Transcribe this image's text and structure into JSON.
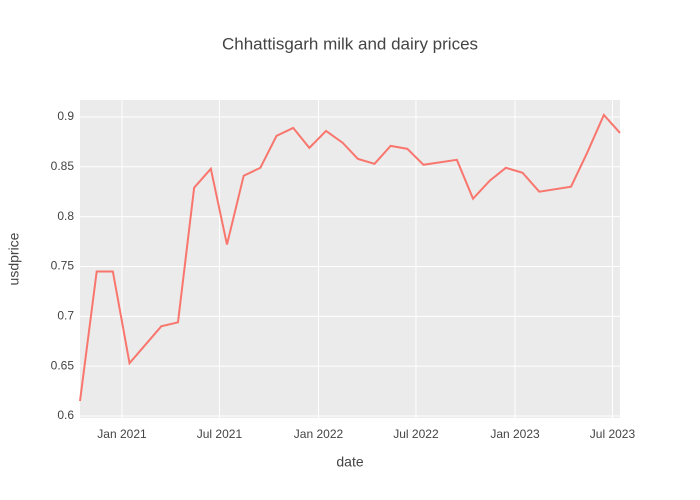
{
  "chart_data": {
    "type": "line",
    "title": "Chhattisgarh milk and dairy prices",
    "x_label": "date",
    "y_label": "usdprice",
    "x": [
      "2020-10-15",
      "2020-11-15",
      "2020-12-15",
      "2021-01-15",
      "2021-03-15",
      "2021-04-15",
      "2021-05-15",
      "2021-06-15",
      "2021-07-15",
      "2021-08-15",
      "2021-09-15",
      "2021-10-15",
      "2021-11-15",
      "2021-12-15",
      "2022-01-15",
      "2022-02-15",
      "2022-03-15",
      "2022-04-15",
      "2022-05-15",
      "2022-06-15",
      "2022-07-15",
      "2022-09-15",
      "2022-10-15",
      "2022-11-15",
      "2022-12-15",
      "2023-01-15",
      "2023-02-15",
      "2023-04-15",
      "2023-05-15",
      "2023-06-15",
      "2023-07-15"
    ],
    "series": [
      {
        "color": "#F8766D",
        "values": [
          0.615,
          0.745,
          0.745,
          0.653,
          0.69,
          0.694,
          0.829,
          0.848,
          0.772,
          0.841,
          0.849,
          0.881,
          0.889,
          0.869,
          0.886,
          0.874,
          0.858,
          0.853,
          0.871,
          0.868,
          0.852,
          0.857,
          0.818,
          0.836,
          0.849,
          0.844,
          0.825,
          0.83,
          0.864,
          0.902,
          0.884
        ]
      }
    ],
    "xlim": [
      "2020-10-15",
      "2023-07-15"
    ],
    "xticks": [
      {
        "value": "2021-01-01",
        "label": "Jan 2021"
      },
      {
        "value": "2021-07-01",
        "label": "Jul 2021"
      },
      {
        "value": "2022-01-01",
        "label": "Jan 2022"
      },
      {
        "value": "2022-07-01",
        "label": "Jul 2022"
      },
      {
        "value": "2023-01-01",
        "label": "Jan 2023"
      },
      {
        "value": "2023-07-01",
        "label": "Jul 2023"
      }
    ],
    "ylim": [
      0.598,
      0.917
    ],
    "yticks": [
      0.6,
      0.65,
      0.7,
      0.75,
      0.8,
      0.85,
      0.9
    ],
    "grid": true
  }
}
